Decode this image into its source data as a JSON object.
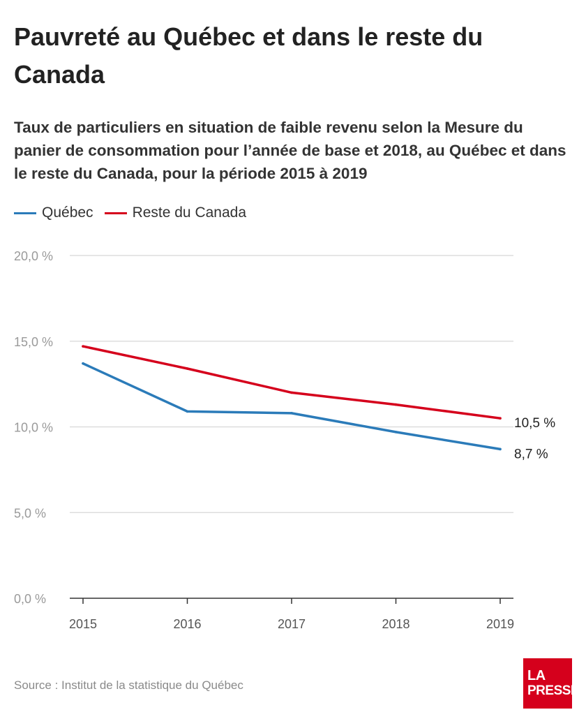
{
  "title": "Pauvreté au Québec et dans le reste du Canada",
  "subtitle": "Taux de particuliers en situation de faible revenu selon la Mesure du panier de consommation pour l’année de base et 2018, au Québec et dans le reste du Canada, pour la période 2015 à 2019",
  "source": "Source : Institut de la statistique du Québec",
  "logo": {
    "line1": "LA",
    "line2": "PRESSE",
    "color": "#d5001c"
  },
  "colors": {
    "quebec": "#2b7bb9",
    "reste": "#d5001c",
    "grid": "#dddddd",
    "tick_text": "#9a9a9a",
    "axis": "#333333"
  },
  "chart_data": {
    "type": "line",
    "x": [
      "2015",
      "2016",
      "2017",
      "2018",
      "2019"
    ],
    "ylim": [
      0,
      20
    ],
    "yticks": [
      0,
      5,
      10,
      15,
      20
    ],
    "ytick_labels": [
      "0,0 %",
      "5,0 %",
      "10,0 %",
      "15,0 %",
      "20,0 %"
    ],
    "grid": true,
    "legend_position": "top-left",
    "series": [
      {
        "name": "Québec",
        "color": "#2b7bb9",
        "values": [
          13.7,
          10.9,
          10.8,
          9.7,
          8.7
        ],
        "end_label": "8,7 %"
      },
      {
        "name": "Reste du Canada",
        "color": "#d5001c",
        "values": [
          14.7,
          13.4,
          12.0,
          11.3,
          10.5
        ],
        "end_label": "10,5 %"
      }
    ]
  }
}
